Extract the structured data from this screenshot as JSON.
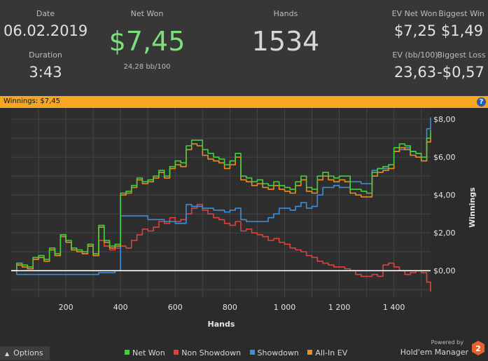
{
  "stats": {
    "date_label": "Date",
    "date_value": "06.02.2019",
    "duration_label": "Duration",
    "duration_value": "3:43",
    "netwon_label": "Net Won",
    "netwon_value": "$7,45",
    "netwon_sub": "24,28 bb/100",
    "hands_label": "Hands",
    "hands_value": "1534",
    "evnet_label": "EV Net Won",
    "evnet_value": "$7,25",
    "bigwin_label": "Biggest Win",
    "bigwin_value": "$1,49",
    "evbb_label": "EV (bb/100)",
    "evbb_value": "23,63",
    "bigloss_label": "Biggest Loss",
    "bigloss_value": "-$0,57"
  },
  "banner": {
    "text": "Winnings: $7,45",
    "help": "?"
  },
  "footer": {
    "options_label": "Options",
    "legend": [
      {
        "label": "Net Won",
        "color": "#3fd13f"
      },
      {
        "label": "Non Showdown",
        "color": "#e0413f"
      },
      {
        "label": "Showdown",
        "color": "#3b8fe0"
      },
      {
        "label": "All-In EV",
        "color": "#f08c1e"
      }
    ],
    "powered_by": "Powered by",
    "brand_name": "Hold'em Manager",
    "brand_num": "2"
  },
  "colors": {
    "accent": "#f5a623",
    "netwon_green": "#7be07b"
  },
  "chart_data": {
    "type": "line",
    "xlabel": "Hands",
    "ylabel": "Winnings",
    "xlim": [
      0,
      1534
    ],
    "ylim": [
      -1.4,
      8.6
    ],
    "x_ticks": [
      200,
      400,
      600,
      800,
      1000,
      1200,
      1400
    ],
    "x_tick_labels": [
      "200",
      "400",
      "600",
      "800",
      "1 000",
      "1 200",
      "1 400"
    ],
    "y_ticks": [
      0,
      2,
      4,
      6,
      8
    ],
    "y_tick_labels": [
      "$0,00",
      "$2,00",
      "$4,00",
      "$6,00",
      "$8,00"
    ],
    "grid": true,
    "series": [
      {
        "name": "Net Won",
        "color": "#3fd13f",
        "x": [
          0,
          20,
          40,
          60,
          80,
          100,
          120,
          140,
          160,
          180,
          200,
          220,
          240,
          260,
          280,
          300,
          320,
          340,
          360,
          380,
          400,
          420,
          440,
          460,
          480,
          500,
          520,
          540,
          560,
          580,
          600,
          620,
          640,
          660,
          680,
          700,
          720,
          740,
          760,
          780,
          800,
          820,
          840,
          860,
          880,
          900,
          920,
          940,
          960,
          980,
          1000,
          1020,
          1040,
          1060,
          1080,
          1100,
          1120,
          1140,
          1160,
          1180,
          1200,
          1220,
          1240,
          1260,
          1280,
          1300,
          1320,
          1340,
          1360,
          1380,
          1400,
          1420,
          1440,
          1460,
          1480,
          1500,
          1520,
          1534
        ],
        "values": [
          0.0,
          0.4,
          0.3,
          0.2,
          0.7,
          0.8,
          0.6,
          1.2,
          0.9,
          1.9,
          1.6,
          1.2,
          1.1,
          1.0,
          1.4,
          0.9,
          2.4,
          1.6,
          1.3,
          1.4,
          4.1,
          4.2,
          4.5,
          4.9,
          4.7,
          4.8,
          5.0,
          5.3,
          5.0,
          5.5,
          5.8,
          5.7,
          6.6,
          6.9,
          6.9,
          6.4,
          6.2,
          6.0,
          5.9,
          5.6,
          5.8,
          6.2,
          5.0,
          4.9,
          4.7,
          4.8,
          4.6,
          4.5,
          4.7,
          4.5,
          4.4,
          4.3,
          4.7,
          5.0,
          4.4,
          4.3,
          5.0,
          5.2,
          5.0,
          4.9,
          5.0,
          5.0,
          4.3,
          4.3,
          4.2,
          4.1,
          5.2,
          5.4,
          5.5,
          5.6,
          6.5,
          6.7,
          6.6,
          6.3,
          6.2,
          6.0,
          7.0,
          7.45
        ]
      },
      {
        "name": "Non Showdown",
        "color": "#e0413f",
        "x": [
          0,
          20,
          40,
          60,
          80,
          100,
          120,
          140,
          160,
          180,
          200,
          220,
          240,
          260,
          280,
          300,
          320,
          340,
          360,
          380,
          400,
          420,
          440,
          460,
          480,
          500,
          520,
          540,
          560,
          580,
          600,
          620,
          640,
          660,
          680,
          700,
          720,
          740,
          760,
          780,
          800,
          820,
          840,
          860,
          880,
          900,
          920,
          940,
          960,
          980,
          1000,
          1020,
          1040,
          1060,
          1080,
          1100,
          1120,
          1140,
          1160,
          1180,
          1200,
          1220,
          1240,
          1260,
          1280,
          1300,
          1320,
          1340,
          1360,
          1380,
          1400,
          1420,
          1440,
          1460,
          1480,
          1500,
          1520,
          1534
        ],
        "values": [
          0.0,
          0.3,
          0.2,
          0.1,
          0.6,
          0.7,
          0.5,
          1.1,
          0.8,
          1.9,
          1.5,
          1.1,
          1.0,
          0.9,
          1.3,
          0.8,
          1.6,
          1.3,
          1.1,
          1.2,
          1.3,
          1.2,
          1.6,
          1.9,
          2.2,
          2.1,
          2.3,
          2.6,
          2.5,
          2.8,
          2.6,
          2.7,
          3.0,
          3.3,
          3.5,
          3.2,
          3.0,
          2.8,
          2.7,
          2.5,
          2.4,
          2.6,
          2.1,
          2.2,
          2.0,
          1.9,
          1.8,
          1.6,
          1.7,
          1.5,
          1.4,
          1.2,
          1.1,
          1.0,
          0.8,
          0.7,
          0.5,
          0.4,
          0.3,
          0.2,
          0.2,
          0.1,
          0.0,
          -0.2,
          -0.3,
          -0.3,
          -0.2,
          -0.3,
          0.3,
          0.4,
          0.2,
          0.0,
          -0.2,
          -0.1,
          0.0,
          -0.1,
          -0.6,
          -1.1
        ]
      },
      {
        "name": "Showdown",
        "color": "#3b8fe0",
        "x": [
          0,
          20,
          40,
          60,
          80,
          100,
          120,
          140,
          160,
          180,
          200,
          220,
          240,
          260,
          280,
          300,
          320,
          340,
          360,
          380,
          400,
          420,
          440,
          460,
          480,
          500,
          520,
          540,
          560,
          580,
          600,
          620,
          640,
          660,
          680,
          700,
          720,
          740,
          760,
          780,
          800,
          820,
          840,
          860,
          880,
          900,
          920,
          940,
          960,
          980,
          1000,
          1020,
          1040,
          1060,
          1080,
          1100,
          1120,
          1140,
          1160,
          1180,
          1200,
          1220,
          1240,
          1260,
          1280,
          1300,
          1320,
          1340,
          1360,
          1380,
          1400,
          1420,
          1440,
          1460,
          1480,
          1500,
          1520,
          1534
        ],
        "values": [
          0.0,
          -0.2,
          -0.2,
          -0.2,
          -0.2,
          -0.2,
          -0.2,
          -0.2,
          -0.2,
          -0.2,
          -0.2,
          -0.2,
          -0.2,
          -0.2,
          -0.2,
          -0.2,
          -0.1,
          -0.1,
          -0.1,
          0.0,
          2.9,
          2.9,
          2.9,
          2.9,
          2.9,
          2.7,
          2.7,
          2.7,
          2.6,
          2.6,
          2.5,
          2.5,
          3.5,
          3.4,
          3.4,
          3.3,
          3.3,
          3.2,
          3.2,
          3.1,
          3.2,
          3.3,
          2.7,
          2.6,
          2.6,
          2.6,
          2.6,
          2.8,
          3.0,
          3.3,
          3.3,
          3.2,
          3.4,
          3.6,
          3.3,
          3.4,
          4.0,
          4.4,
          4.4,
          4.5,
          4.4,
          4.4,
          4.7,
          4.7,
          4.6,
          4.6,
          5.3,
          5.4,
          5.4,
          5.6,
          6.3,
          6.4,
          6.5,
          6.3,
          6.2,
          6.0,
          7.5,
          8.1
        ]
      },
      {
        "name": "All-In EV",
        "color": "#f08c1e",
        "x": [
          0,
          20,
          40,
          60,
          80,
          100,
          120,
          140,
          160,
          180,
          200,
          220,
          240,
          260,
          280,
          300,
          320,
          340,
          360,
          380,
          400,
          420,
          440,
          460,
          480,
          500,
          520,
          540,
          560,
          580,
          600,
          620,
          640,
          660,
          680,
          700,
          720,
          740,
          760,
          780,
          800,
          820,
          840,
          860,
          880,
          900,
          920,
          940,
          960,
          980,
          1000,
          1020,
          1040,
          1060,
          1080,
          1100,
          1120,
          1140,
          1160,
          1180,
          1200,
          1220,
          1240,
          1260,
          1280,
          1300,
          1320,
          1340,
          1360,
          1380,
          1400,
          1420,
          1440,
          1460,
          1480,
          1500,
          1520,
          1534
        ],
        "values": [
          0.0,
          0.3,
          0.2,
          0.1,
          0.6,
          0.7,
          0.5,
          1.1,
          0.8,
          1.8,
          1.5,
          1.1,
          1.0,
          0.9,
          1.3,
          0.8,
          2.3,
          1.5,
          1.2,
          1.3,
          4.0,
          4.1,
          4.4,
          4.8,
          4.6,
          4.7,
          4.9,
          5.2,
          4.9,
          5.4,
          5.6,
          5.5,
          6.4,
          6.7,
          6.6,
          6.1,
          5.9,
          5.8,
          5.7,
          5.4,
          5.6,
          6.0,
          4.8,
          4.7,
          4.5,
          4.6,
          4.4,
          4.3,
          4.5,
          4.3,
          4.2,
          4.1,
          4.5,
          4.8,
          4.2,
          4.1,
          4.8,
          5.0,
          4.8,
          4.7,
          4.8,
          4.7,
          4.1,
          4.0,
          3.9,
          3.9,
          5.0,
          5.2,
          5.3,
          5.4,
          6.3,
          6.5,
          6.4,
          6.1,
          6.0,
          5.8,
          6.8,
          7.25
        ]
      }
    ]
  }
}
